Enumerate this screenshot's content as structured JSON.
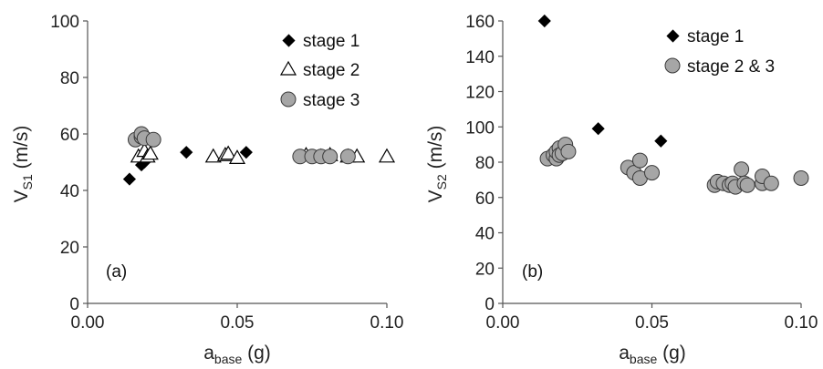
{
  "chart_data": [
    {
      "type": "scatter",
      "panel_label": "(a)",
      "xlabel": {
        "main": "a",
        "sub": "base",
        "unit": " (g)"
      },
      "ylabel": {
        "main": "V",
        "sub": "S1",
        "unit": " (m/s)"
      },
      "xlim": [
        0,
        0.1
      ],
      "ylim": [
        0,
        100
      ],
      "x_ticks": [
        "0.00",
        "0.05",
        "0.10"
      ],
      "y_ticks": [
        "0",
        "20",
        "40",
        "60",
        "80",
        "100"
      ],
      "grid": false,
      "legend_position": "top-right",
      "series": [
        {
          "name": "stage 1",
          "marker": "diamond",
          "color": "#000000",
          "points": [
            [
              0.014,
              44
            ],
            [
              0.018,
              49
            ],
            [
              0.019,
              50
            ],
            [
              0.033,
              53.5
            ],
            [
              0.053,
              53.5
            ]
          ]
        },
        {
          "name": "stage 2",
          "marker": "triangle-open",
          "color": "#000000",
          "points": [
            [
              0.017,
              52
            ],
            [
              0.019,
              54
            ],
            [
              0.02,
              52
            ],
            [
              0.021,
              53
            ],
            [
              0.042,
              52
            ],
            [
              0.046,
              52.5
            ],
            [
              0.047,
              53
            ],
            [
              0.05,
              51.5
            ],
            [
              0.073,
              52.5
            ],
            [
              0.078,
              52
            ],
            [
              0.081,
              52.5
            ],
            [
              0.087,
              52
            ],
            [
              0.09,
              52
            ],
            [
              0.1,
              52
            ]
          ]
        },
        {
          "name": "stage 3",
          "marker": "circle",
          "color": "#a6a6a6",
          "points": [
            [
              0.016,
              58
            ],
            [
              0.018,
              59
            ],
            [
              0.018,
              60
            ],
            [
              0.019,
              58.5
            ],
            [
              0.022,
              58
            ],
            [
              0.071,
              52
            ],
            [
              0.075,
              52
            ],
            [
              0.078,
              52
            ],
            [
              0.081,
              52
            ],
            [
              0.087,
              52
            ]
          ]
        }
      ]
    },
    {
      "type": "scatter",
      "panel_label": "(b)",
      "xlabel": {
        "main": "a",
        "sub": "base",
        "unit": " (g)"
      },
      "ylabel": {
        "main": "V",
        "sub": "S2",
        "unit": " (m/s)"
      },
      "xlim": [
        0,
        0.1
      ],
      "ylim": [
        0,
        160
      ],
      "x_ticks": [
        "0.00",
        "0.05",
        "0.10"
      ],
      "y_ticks": [
        "0",
        "20",
        "40",
        "60",
        "80",
        "100",
        "120",
        "140",
        "160"
      ],
      "grid": false,
      "legend_position": "top-right",
      "series": [
        {
          "name": "stage 1",
          "marker": "diamond",
          "color": "#000000",
          "points": [
            [
              0.014,
              160
            ],
            [
              0.032,
              99
            ],
            [
              0.053,
              92
            ]
          ]
        },
        {
          "name": "stage 2 & 3",
          "marker": "circle",
          "color": "#a6a6a6",
          "points": [
            [
              0.015,
              82
            ],
            [
              0.017,
              84
            ],
            [
              0.018,
              82
            ],
            [
              0.018,
              86
            ],
            [
              0.019,
              88
            ],
            [
              0.019,
              84
            ],
            [
              0.02,
              85
            ],
            [
              0.021,
              90
            ],
            [
              0.022,
              86
            ],
            [
              0.042,
              77
            ],
            [
              0.044,
              74
            ],
            [
              0.046,
              81
            ],
            [
              0.046,
              71
            ],
            [
              0.05,
              74
            ],
            [
              0.071,
              67
            ],
            [
              0.072,
              69
            ],
            [
              0.074,
              68
            ],
            [
              0.076,
              67
            ],
            [
              0.077,
              68
            ],
            [
              0.078,
              66
            ],
            [
              0.08,
              76
            ],
            [
              0.081,
              68
            ],
            [
              0.082,
              67
            ],
            [
              0.087,
              68
            ],
            [
              0.087,
              72
            ],
            [
              0.09,
              68
            ],
            [
              0.1,
              71
            ]
          ]
        }
      ]
    }
  ]
}
